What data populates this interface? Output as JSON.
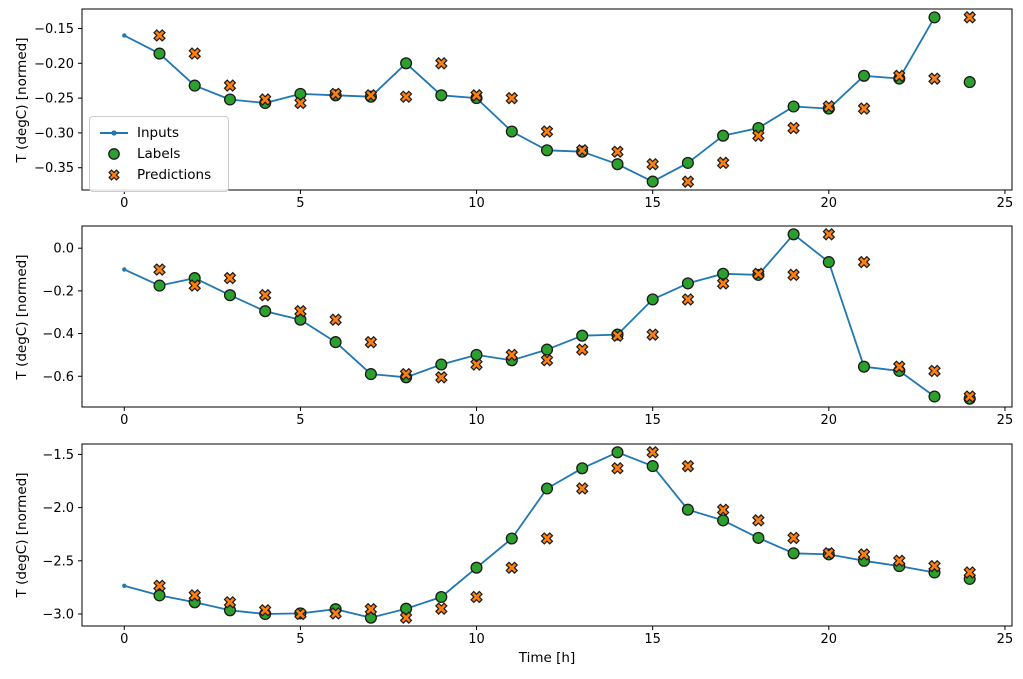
{
  "figure": {
    "background": "#ffffff"
  },
  "legend": {
    "items": [
      "Inputs",
      "Labels",
      "Predictions"
    ]
  },
  "chart_data": [
    {
      "type": "line",
      "title": "",
      "ylabel": "T (degC) [normed]",
      "xlabel": "",
      "xlim": [
        -1.2,
        25.2
      ],
      "ylim": [
        -0.382,
        -0.122
      ],
      "grid": false,
      "legend_position": "center-left-of-first-subplot",
      "xticks": {
        "values": [
          0,
          5,
          10,
          15,
          20,
          25
        ],
        "labels": [
          "0",
          "5",
          "10",
          "15",
          "20",
          "25"
        ]
      },
      "yticks": {
        "values": [
          -0.15,
          -0.2,
          -0.25,
          -0.3,
          -0.35
        ],
        "labels": [
          "−0.15",
          "−0.20",
          "−0.25",
          "−0.30",
          "−0.35"
        ]
      },
      "series": [
        {
          "name": "Inputs",
          "type": "line",
          "marker": "dot",
          "color": "#1f77b4",
          "x": [
            0,
            1,
            2,
            3,
            4,
            5,
            6,
            7,
            8,
            9,
            10,
            11,
            12,
            13,
            14,
            15,
            16,
            17,
            18,
            19,
            20,
            21,
            22,
            23
          ],
          "y": [
            -0.16,
            -0.186,
            -0.232,
            -0.252,
            -0.257,
            -0.244,
            -0.246,
            -0.248,
            -0.2,
            -0.246,
            -0.25,
            -0.298,
            -0.325,
            -0.327,
            -0.345,
            -0.37,
            -0.343,
            -0.304,
            -0.293,
            -0.262,
            -0.265,
            -0.218,
            -0.222,
            -0.134
          ]
        },
        {
          "name": "Labels",
          "type": "scatter",
          "marker": "circle",
          "color": "#2ca02c",
          "edge": "#1a1a1a",
          "x": [
            1,
            2,
            3,
            4,
            5,
            6,
            7,
            8,
            9,
            10,
            11,
            12,
            13,
            14,
            15,
            16,
            17,
            18,
            19,
            20,
            21,
            22,
            23,
            24
          ],
          "y": [
            -0.186,
            -0.232,
            -0.252,
            -0.257,
            -0.244,
            -0.246,
            -0.248,
            -0.2,
            -0.246,
            -0.25,
            -0.298,
            -0.325,
            -0.327,
            -0.345,
            -0.37,
            -0.343,
            -0.304,
            -0.293,
            -0.262,
            -0.265,
            -0.218,
            -0.222,
            -0.134,
            -0.227
          ]
        },
        {
          "name": "Predictions",
          "type": "scatter",
          "marker": "X",
          "color": "#ff7f0e",
          "edge": "#1a1a1a",
          "x": [
            1,
            2,
            3,
            4,
            5,
            6,
            7,
            8,
            9,
            10,
            11,
            12,
            13,
            14,
            15,
            16,
            17,
            18,
            19,
            20,
            21,
            22,
            23,
            24
          ],
          "y": [
            -0.16,
            -0.186,
            -0.232,
            -0.252,
            -0.257,
            -0.244,
            -0.246,
            -0.248,
            -0.2,
            -0.246,
            -0.25,
            -0.298,
            -0.325,
            -0.327,
            -0.345,
            -0.37,
            -0.343,
            -0.304,
            -0.293,
            -0.262,
            -0.265,
            -0.218,
            -0.222,
            -0.134
          ]
        }
      ]
    },
    {
      "type": "line",
      "title": "",
      "ylabel": "T (degC) [normed]",
      "xlabel": "",
      "xlim": [
        -1.2,
        25.2
      ],
      "ylim": [
        -0.744,
        0.104
      ],
      "grid": false,
      "xticks": {
        "values": [
          0,
          5,
          10,
          15,
          20,
          25
        ],
        "labels": [
          "0",
          "5",
          "10",
          "15",
          "20",
          "25"
        ]
      },
      "yticks": {
        "values": [
          0.0,
          -0.2,
          -0.4,
          -0.6
        ],
        "labels": [
          "0.0",
          "−0.2",
          "−0.4",
          "−0.6"
        ]
      },
      "series": [
        {
          "name": "Inputs",
          "type": "line",
          "marker": "dot",
          "color": "#1f77b4",
          "x": [
            0,
            1,
            2,
            3,
            4,
            5,
            6,
            7,
            8,
            9,
            10,
            11,
            12,
            13,
            14,
            15,
            16,
            17,
            18,
            19,
            20,
            21,
            22,
            23
          ],
          "y": [
            -0.1,
            -0.175,
            -0.14,
            -0.22,
            -0.295,
            -0.335,
            -0.44,
            -0.59,
            -0.605,
            -0.545,
            -0.5,
            -0.525,
            -0.475,
            -0.41,
            -0.405,
            -0.24,
            -0.165,
            -0.12,
            -0.125,
            0.065,
            -0.065,
            -0.555,
            -0.575,
            -0.695
          ]
        },
        {
          "name": "Labels",
          "type": "scatter",
          "marker": "circle",
          "color": "#2ca02c",
          "edge": "#1a1a1a",
          "x": [
            1,
            2,
            3,
            4,
            5,
            6,
            7,
            8,
            9,
            10,
            11,
            12,
            13,
            14,
            15,
            16,
            17,
            18,
            19,
            20,
            21,
            22,
            23,
            24
          ],
          "y": [
            -0.175,
            -0.14,
            -0.22,
            -0.295,
            -0.335,
            -0.44,
            -0.59,
            -0.605,
            -0.545,
            -0.5,
            -0.525,
            -0.475,
            -0.41,
            -0.405,
            -0.24,
            -0.165,
            -0.12,
            -0.125,
            0.065,
            -0.065,
            -0.555,
            -0.575,
            -0.695,
            -0.705
          ]
        },
        {
          "name": "Predictions",
          "type": "scatter",
          "marker": "X",
          "color": "#ff7f0e",
          "edge": "#1a1a1a",
          "x": [
            1,
            2,
            3,
            4,
            5,
            6,
            7,
            8,
            9,
            10,
            11,
            12,
            13,
            14,
            15,
            16,
            17,
            18,
            19,
            20,
            21,
            22,
            23,
            24
          ],
          "y": [
            -0.1,
            -0.175,
            -0.14,
            -0.22,
            -0.295,
            -0.335,
            -0.44,
            -0.59,
            -0.605,
            -0.545,
            -0.5,
            -0.525,
            -0.475,
            -0.41,
            -0.405,
            -0.24,
            -0.165,
            -0.12,
            -0.125,
            0.065,
            -0.065,
            -0.555,
            -0.575,
            -0.695
          ]
        }
      ]
    },
    {
      "type": "line",
      "title": "",
      "ylabel": "T (degC) [normed]",
      "xlabel": "Time [h]",
      "xlim": [
        -1.2,
        25.2
      ],
      "ylim": [
        -3.113,
        -1.402
      ],
      "grid": false,
      "xticks": {
        "values": [
          0,
          5,
          10,
          15,
          20,
          25
        ],
        "labels": [
          "0",
          "5",
          "10",
          "15",
          "20",
          "25"
        ]
      },
      "yticks": {
        "values": [
          -1.5,
          -2.0,
          -2.5,
          -3.0
        ],
        "labels": [
          "−1.5",
          "−2.0",
          "−2.5",
          "−3.0"
        ]
      },
      "series": [
        {
          "name": "Inputs",
          "type": "line",
          "marker": "dot",
          "color": "#1f77b4",
          "x": [
            0,
            1,
            2,
            3,
            4,
            5,
            6,
            7,
            8,
            9,
            10,
            11,
            12,
            13,
            14,
            15,
            16,
            17,
            18,
            19,
            20,
            21,
            22,
            23
          ],
          "y": [
            -2.735,
            -2.825,
            -2.89,
            -2.965,
            -3.0,
            -2.995,
            -2.955,
            -3.035,
            -2.95,
            -2.84,
            -2.565,
            -2.29,
            -1.82,
            -1.63,
            -1.48,
            -1.61,
            -2.02,
            -2.12,
            -2.285,
            -2.43,
            -2.44,
            -2.5,
            -2.55,
            -2.61
          ]
        },
        {
          "name": "Labels",
          "type": "scatter",
          "marker": "circle",
          "color": "#2ca02c",
          "edge": "#1a1a1a",
          "x": [
            1,
            2,
            3,
            4,
            5,
            6,
            7,
            8,
            9,
            10,
            11,
            12,
            13,
            14,
            15,
            16,
            17,
            18,
            19,
            20,
            21,
            22,
            23,
            24
          ],
          "y": [
            -2.825,
            -2.89,
            -2.965,
            -3.0,
            -2.995,
            -2.955,
            -3.035,
            -2.95,
            -2.84,
            -2.565,
            -2.29,
            -1.82,
            -1.63,
            -1.48,
            -1.61,
            -2.02,
            -2.12,
            -2.285,
            -2.43,
            -2.44,
            -2.5,
            -2.55,
            -2.61,
            -2.67
          ]
        },
        {
          "name": "Predictions",
          "type": "scatter",
          "marker": "X",
          "color": "#ff7f0e",
          "edge": "#1a1a1a",
          "x": [
            1,
            2,
            3,
            4,
            5,
            6,
            7,
            8,
            9,
            10,
            11,
            12,
            13,
            14,
            15,
            16,
            17,
            18,
            19,
            20,
            21,
            22,
            23,
            24
          ],
          "y": [
            -2.735,
            -2.825,
            -2.89,
            -2.965,
            -3.0,
            -2.995,
            -2.955,
            -3.035,
            -2.95,
            -2.84,
            -2.565,
            -2.29,
            -1.82,
            -1.63,
            -1.48,
            -1.61,
            -2.02,
            -2.12,
            -2.285,
            -2.43,
            -2.44,
            -2.5,
            -2.55,
            -2.61
          ]
        }
      ]
    }
  ]
}
